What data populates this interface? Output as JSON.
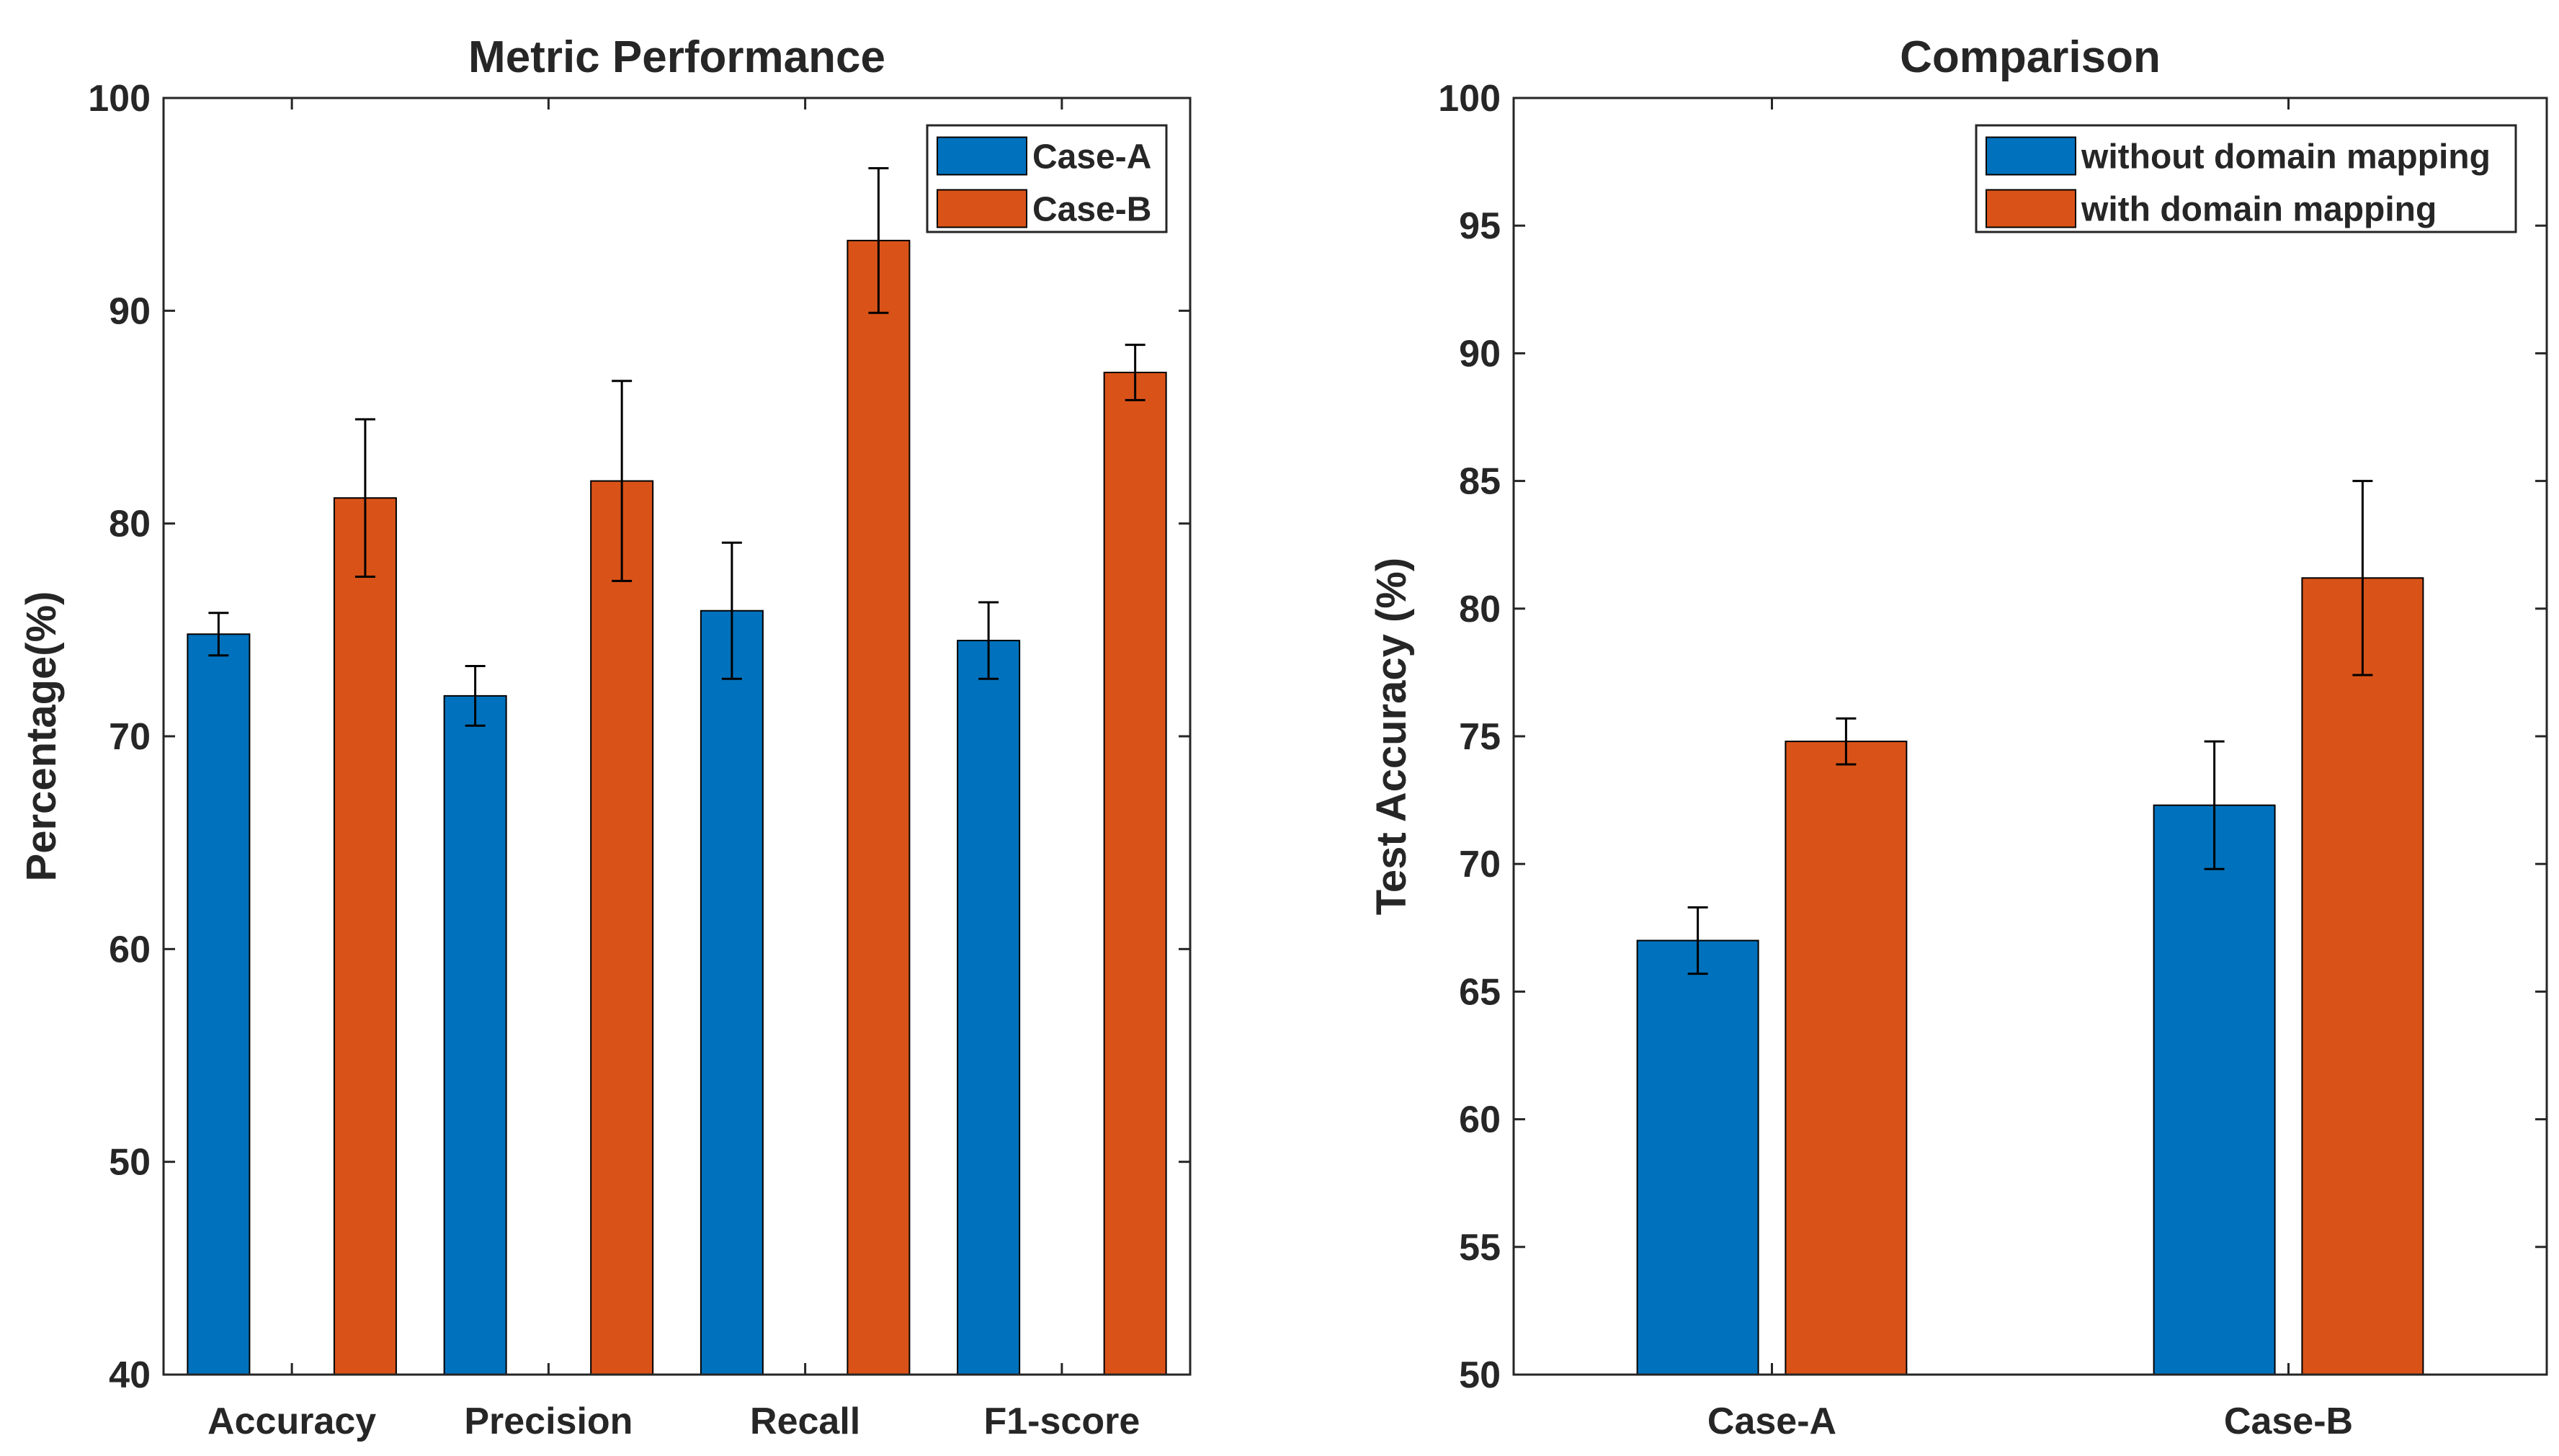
{
  "chart_data": [
    {
      "type": "bar",
      "title": "Metric Performance",
      "xlabel": "",
      "ylabel": "Percentage(%)",
      "ylim": [
        40,
        100
      ],
      "yticks": [
        40,
        50,
        60,
        70,
        80,
        90,
        100
      ],
      "categories": [
        "Accuracy",
        "Precision",
        "Recall",
        "F1-score"
      ],
      "series": [
        {
          "name": "Case-A",
          "color": "#0072BD",
          "values": [
            74.8,
            71.9,
            75.9,
            74.5
          ],
          "errors": [
            1.0,
            1.4,
            3.2,
            1.8
          ]
        },
        {
          "name": "Case-B",
          "color": "#D95319",
          "values": [
            81.2,
            82.0,
            93.3,
            87.1
          ],
          "errors": [
            3.7,
            4.7,
            3.4,
            1.3
          ]
        }
      ],
      "legend": "top-right",
      "grid": false
    },
    {
      "type": "bar",
      "title": "Comparison",
      "xlabel": "",
      "ylabel": "Test Accuracy (%)",
      "ylim": [
        50,
        100
      ],
      "yticks": [
        50,
        55,
        60,
        65,
        70,
        75,
        80,
        85,
        90,
        95,
        100
      ],
      "categories": [
        "Case-A",
        "Case-B"
      ],
      "series": [
        {
          "name": "without domain mapping",
          "color": "#0072BD",
          "values": [
            67.0,
            72.3
          ],
          "errors": [
            1.3,
            2.5
          ]
        },
        {
          "name": "with domain mapping",
          "color": "#D95319",
          "values": [
            74.8,
            81.2
          ],
          "errors": [
            0.9,
            3.8
          ]
        }
      ],
      "legend": "top-right",
      "grid": false
    }
  ]
}
